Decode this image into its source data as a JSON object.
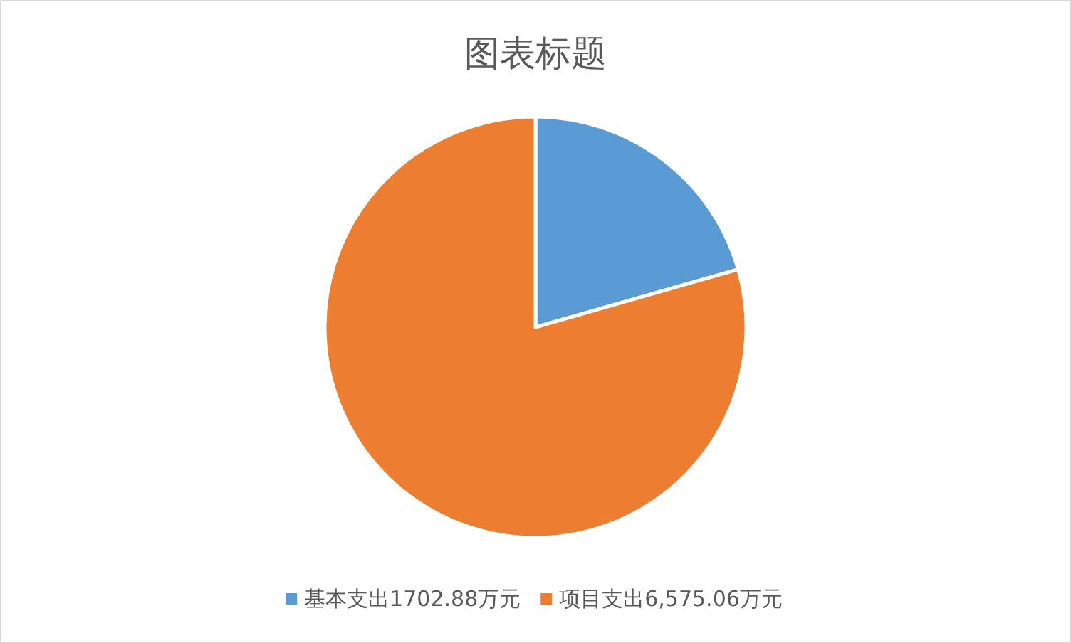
{
  "chart_data": {
    "type": "pie",
    "title": "图表标题",
    "categories": [
      "基本支出1702.88万元",
      "项目支出6,575.06万元"
    ],
    "values": [
      1702.88,
      6575.06
    ],
    "colors": [
      "#5b9bd5",
      "#ed7d31"
    ],
    "legend": "bottom"
  }
}
